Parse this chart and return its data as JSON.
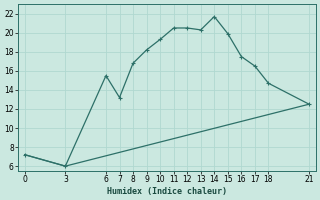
{
  "xlabel": "Humidex (Indice chaleur)",
  "ylabel": "",
  "bg_color": "#cbe8e0",
  "line_color": "#2d7068",
  "grid_color": "#b0d8d0",
  "ylim": [
    5.5,
    23
  ],
  "xlim": [
    -0.5,
    21.5
  ],
  "yticks": [
    6,
    8,
    10,
    12,
    14,
    16,
    18,
    20,
    22
  ],
  "xticks": [
    0,
    3,
    6,
    7,
    8,
    9,
    10,
    11,
    12,
    13,
    14,
    15,
    16,
    17,
    18,
    21
  ],
  "curve1_x": [
    0,
    3,
    6,
    7,
    8,
    9,
    10,
    11,
    12,
    13,
    14,
    15,
    16,
    17,
    18,
    21
  ],
  "curve1_y": [
    7.2,
    6.0,
    15.5,
    13.2,
    16.8,
    18.2,
    19.3,
    20.5,
    20.5,
    20.3,
    21.7,
    19.9,
    17.5,
    16.5,
    14.7,
    12.5
  ],
  "curve2_x": [
    0,
    3,
    21
  ],
  "curve2_y": [
    7.2,
    6.0,
    12.5
  ]
}
